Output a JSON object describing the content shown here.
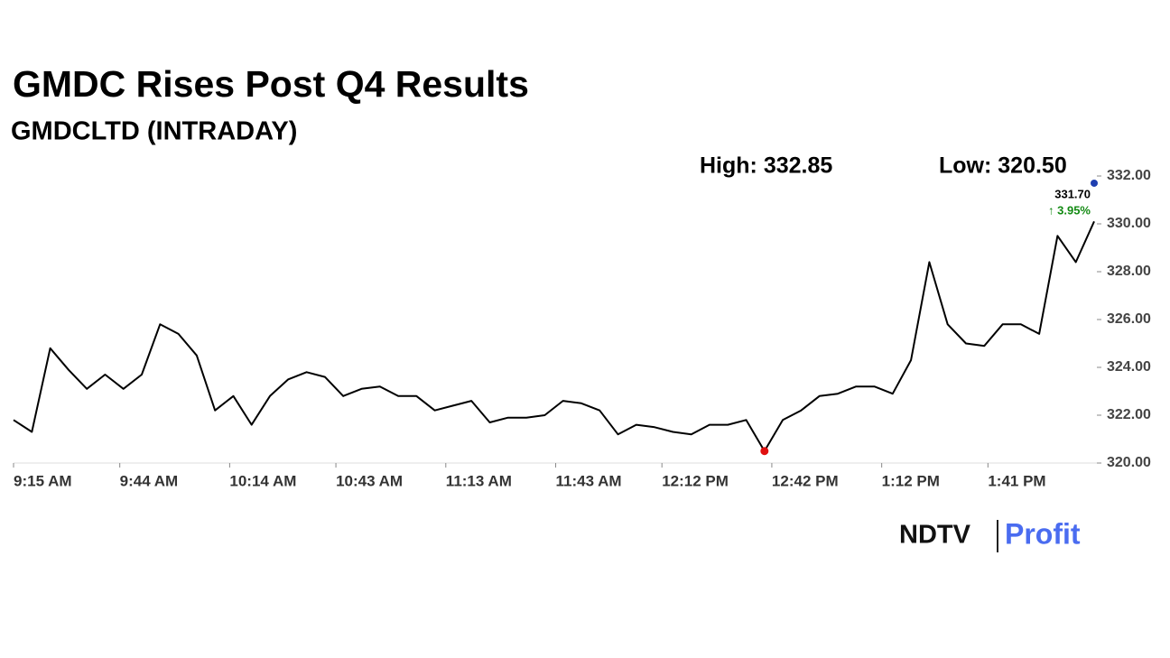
{
  "chart_data": {
    "type": "line",
    "title": "GMDC Rises Post Q4 Results",
    "subtitle": "GMDCLTD (INTRADAY)",
    "high_label": "High: 332.85",
    "low_label": "Low: 320.50",
    "last": {
      "value": 331.7,
      "label": "331.70"
    },
    "change_label": "↑ 3.95%",
    "color": "#000000",
    "x": [
      "9:15 AM",
      "9:20 AM",
      "9:25 AM",
      "9:30 AM",
      "9:35 AM",
      "9:40 AM",
      "9:45 AM",
      "9:50 AM",
      "9:55 AM",
      "10:00 AM",
      "10:05 AM",
      "10:10 AM",
      "10:15 AM",
      "10:20 AM",
      "10:25 AM",
      "10:30 AM",
      "10:35 AM",
      "10:40 AM",
      "10:45 AM",
      "10:50 AM",
      "10:55 AM",
      "11:00 AM",
      "11:05 AM",
      "11:10 AM",
      "11:15 AM",
      "11:20 AM",
      "11:25 AM",
      "11:30 AM",
      "11:35 AM",
      "11:40 AM",
      "11:45 AM",
      "11:50 AM",
      "11:55 AM",
      "12:00 PM",
      "12:05 PM",
      "12:10 PM",
      "12:15 PM",
      "12:20 PM",
      "12:25 PM",
      "12:30 PM",
      "12:35 PM",
      "12:40 PM",
      "12:45 PM",
      "12:50 PM",
      "12:55 PM",
      "1:00 PM",
      "1:05 PM",
      "1:10 PM",
      "1:15 PM",
      "1:20 PM",
      "1:25 PM",
      "1:30 PM",
      "1:35 PM",
      "1:40 PM",
      "1:45 PM",
      "1:50 PM",
      "1:55 PM",
      "2:00 PM",
      "2:05 PM",
      "2:10 PM"
    ],
    "values": [
      321.8,
      321.3,
      324.8,
      323.9,
      323.1,
      323.7,
      323.1,
      323.7,
      325.8,
      325.4,
      324.5,
      322.2,
      322.8,
      321.6,
      322.8,
      323.5,
      323.8,
      323.6,
      322.8,
      323.1,
      323.2,
      322.8,
      322.8,
      322.2,
      322.4,
      322.6,
      321.7,
      321.9,
      321.9,
      322.0,
      322.6,
      322.5,
      322.2,
      321.2,
      321.6,
      321.5,
      321.3,
      321.2,
      321.6,
      321.6,
      321.8,
      320.5,
      321.8,
      322.2,
      322.8,
      322.9,
      323.2,
      323.2,
      322.9,
      324.3,
      328.4,
      325.8,
      325.0,
      324.9,
      325.8,
      325.8,
      325.4,
      329.5,
      328.4,
      330.1
    ],
    "xlim": [
      "9:15 AM",
      "2:10 PM"
    ],
    "xticks": [
      "9:15 AM",
      "9:44 AM",
      "10:14 AM",
      "10:43 AM",
      "11:13 AM",
      "11:43 AM",
      "12:12 PM",
      "12:42 PM",
      "1:12 PM",
      "1:41 PM"
    ],
    "ylim": [
      320,
      332
    ],
    "yticks": [
      {
        "value": 320,
        "label": "320.00"
      },
      {
        "value": 322,
        "label": "322.00"
      },
      {
        "value": 324,
        "label": "324.00"
      },
      {
        "value": 326,
        "label": "326.00"
      },
      {
        "value": 328,
        "label": "328.00"
      },
      {
        "value": 330,
        "label": "330.00"
      },
      {
        "value": 332,
        "label": "332.00"
      }
    ],
    "grid": false
  },
  "logo": {
    "left": "NDTV",
    "right": "Profit"
  }
}
